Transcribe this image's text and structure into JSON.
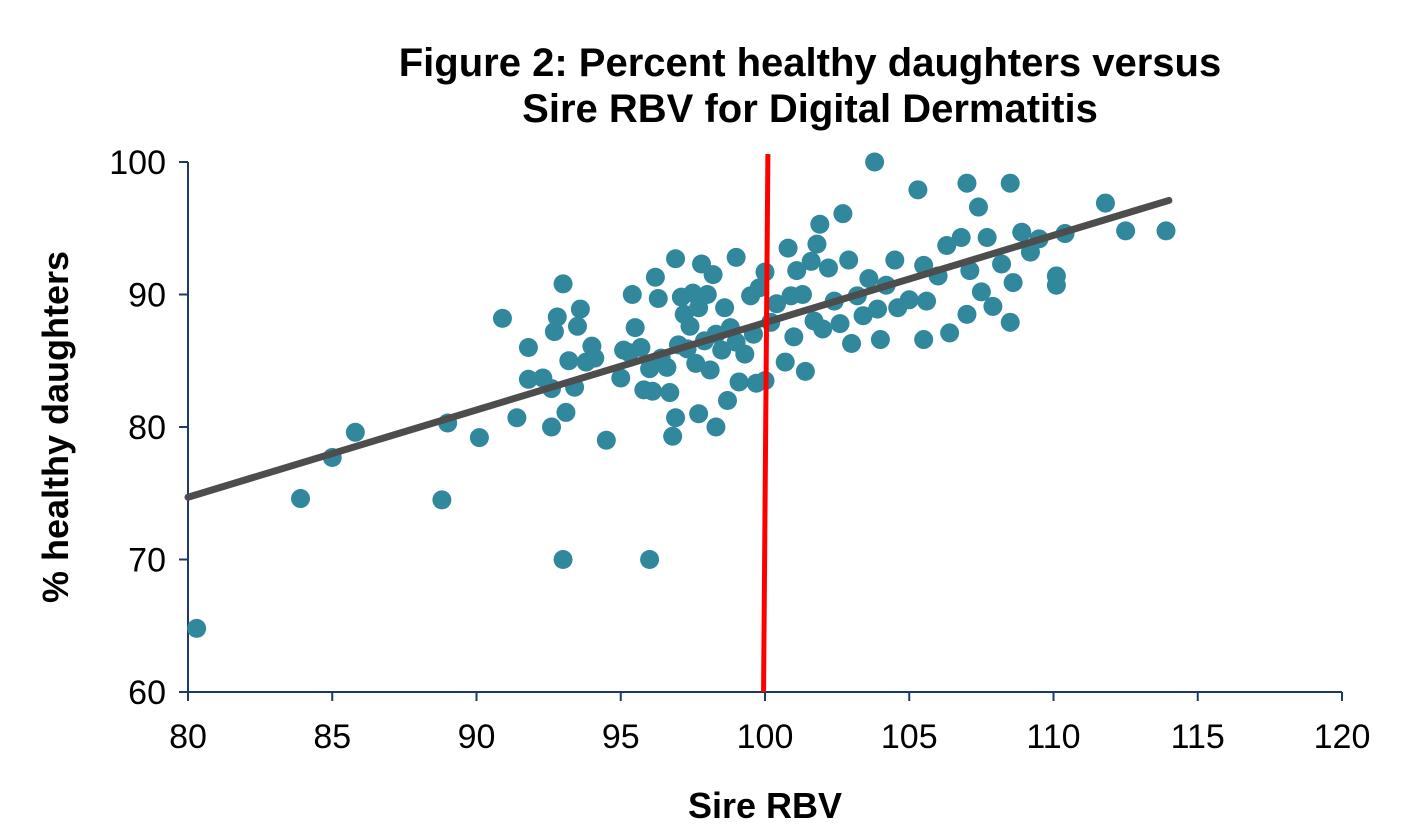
{
  "chart_data": {
    "type": "scatter",
    "title_lines": [
      "Figure 2: Percent healthy daughters versus",
      "Sire RBV for Digital Dermatitis"
    ],
    "xlabel": "Sire RBV",
    "ylabel": "% healthy daughters",
    "xlim": [
      80,
      120
    ],
    "ylim": [
      60,
      100
    ],
    "x_ticks": [
      80,
      85,
      90,
      95,
      100,
      105,
      110,
      115,
      120
    ],
    "y_ticks": [
      60,
      70,
      80,
      90,
      100
    ],
    "grid": false,
    "points": [
      [
        80.3,
        64.8
      ],
      [
        83.9,
        74.6
      ],
      [
        85.0,
        77.7
      ],
      [
        85.8,
        79.6
      ],
      [
        88.8,
        74.5
      ],
      [
        89.0,
        80.3
      ],
      [
        90.1,
        79.2
      ],
      [
        90.9,
        88.2
      ],
      [
        91.4,
        80.7
      ],
      [
        91.8,
        86.0
      ],
      [
        91.8,
        83.6
      ],
      [
        92.3,
        83.7
      ],
      [
        92.6,
        82.9
      ],
      [
        92.6,
        80.0
      ],
      [
        92.7,
        87.2
      ],
      [
        92.8,
        88.3
      ],
      [
        93.0,
        90.8
      ],
      [
        93.0,
        70.0
      ],
      [
        93.1,
        81.1
      ],
      [
        93.2,
        85.0
      ],
      [
        93.4,
        83.0
      ],
      [
        93.5,
        87.6
      ],
      [
        93.6,
        88.9
      ],
      [
        93.8,
        84.9
      ],
      [
        94.0,
        86.1
      ],
      [
        94.1,
        85.2
      ],
      [
        94.5,
        79.0
      ],
      [
        95.0,
        83.7
      ],
      [
        95.1,
        85.8
      ],
      [
        95.3,
        85.6
      ],
      [
        95.4,
        90.0
      ],
      [
        95.5,
        87.5
      ],
      [
        95.7,
        86.0
      ],
      [
        95.8,
        82.8
      ],
      [
        96.0,
        84.4
      ],
      [
        96.0,
        70.0
      ],
      [
        96.1,
        82.7
      ],
      [
        96.2,
        91.3
      ],
      [
        96.3,
        89.7
      ],
      [
        96.4,
        85.2
      ],
      [
        96.6,
        84.5
      ],
      [
        96.7,
        82.6
      ],
      [
        96.8,
        79.3
      ],
      [
        96.9,
        80.7
      ],
      [
        96.9,
        92.7
      ],
      [
        97.0,
        86.2
      ],
      [
        97.1,
        89.8
      ],
      [
        97.2,
        88.5
      ],
      [
        97.3,
        85.9
      ],
      [
        97.4,
        87.6
      ],
      [
        97.5,
        90.1
      ],
      [
        97.6,
        84.8
      ],
      [
        97.7,
        81.0
      ],
      [
        97.7,
        89.0
      ],
      [
        97.8,
        92.3
      ],
      [
        97.9,
        86.5
      ],
      [
        98.0,
        90.0
      ],
      [
        98.1,
        84.3
      ],
      [
        98.2,
        91.5
      ],
      [
        98.3,
        87.0
      ],
      [
        98.3,
        80.0
      ],
      [
        98.5,
        85.8
      ],
      [
        98.6,
        89.0
      ],
      [
        98.7,
        82.0
      ],
      [
        98.8,
        87.5
      ],
      [
        99.0,
        92.8
      ],
      [
        99.0,
        86.4
      ],
      [
        99.1,
        83.4
      ],
      [
        99.3,
        85.5
      ],
      [
        99.5,
        89.9
      ],
      [
        99.6,
        87.0
      ],
      [
        99.7,
        83.3
      ],
      [
        99.8,
        90.5
      ],
      [
        100.0,
        91.7
      ],
      [
        100.0,
        83.5
      ],
      [
        100.2,
        87.9
      ],
      [
        100.4,
        89.3
      ],
      [
        100.7,
        84.9
      ],
      [
        100.8,
        93.5
      ],
      [
        100.9,
        89.9
      ],
      [
        101.0,
        86.8
      ],
      [
        101.1,
        91.8
      ],
      [
        101.3,
        90.0
      ],
      [
        101.4,
        84.2
      ],
      [
        101.6,
        92.5
      ],
      [
        101.7,
        88.0
      ],
      [
        101.8,
        93.8
      ],
      [
        101.9,
        95.3
      ],
      [
        102.0,
        87.4
      ],
      [
        102.2,
        92.0
      ],
      [
        102.4,
        89.5
      ],
      [
        102.6,
        87.8
      ],
      [
        102.7,
        96.1
      ],
      [
        102.9,
        92.6
      ],
      [
        103.0,
        86.3
      ],
      [
        103.2,
        89.9
      ],
      [
        103.4,
        88.4
      ],
      [
        103.6,
        91.2
      ],
      [
        103.8,
        100.0
      ],
      [
        103.9,
        88.9
      ],
      [
        104.0,
        86.6
      ],
      [
        104.2,
        90.7
      ],
      [
        104.5,
        92.6
      ],
      [
        104.6,
        89.0
      ],
      [
        105.0,
        89.6
      ],
      [
        105.3,
        97.9
      ],
      [
        105.5,
        92.2
      ],
      [
        105.5,
        86.6
      ],
      [
        105.6,
        89.5
      ],
      [
        106.0,
        91.4
      ],
      [
        106.3,
        93.7
      ],
      [
        106.4,
        87.1
      ],
      [
        106.8,
        94.3
      ],
      [
        107.0,
        98.4
      ],
      [
        107.0,
        88.5
      ],
      [
        107.1,
        91.8
      ],
      [
        107.4,
        96.6
      ],
      [
        107.5,
        90.2
      ],
      [
        107.7,
        94.3
      ],
      [
        107.9,
        89.1
      ],
      [
        108.2,
        92.3
      ],
      [
        108.5,
        98.4
      ],
      [
        108.5,
        87.9
      ],
      [
        108.6,
        90.9
      ],
      [
        108.9,
        94.7
      ],
      [
        109.2,
        93.2
      ],
      [
        109.5,
        94.2
      ],
      [
        110.1,
        91.4
      ],
      [
        110.1,
        90.7
      ],
      [
        110.4,
        94.6
      ],
      [
        111.8,
        96.9
      ],
      [
        112.5,
        94.8
      ],
      [
        113.9,
        94.8
      ]
    ],
    "trendline": {
      "x": [
        80,
        114
      ],
      "y": [
        74.7,
        97.1
      ]
    },
    "reference_line": {
      "x": [
        100.1,
        99.95
      ],
      "y": [
        100.6,
        60.0
      ]
    },
    "colors": {
      "points": "#31879C",
      "trendline": "#4D4D4D",
      "reference_line": "#FF0000",
      "axis": "#1F3864"
    }
  }
}
